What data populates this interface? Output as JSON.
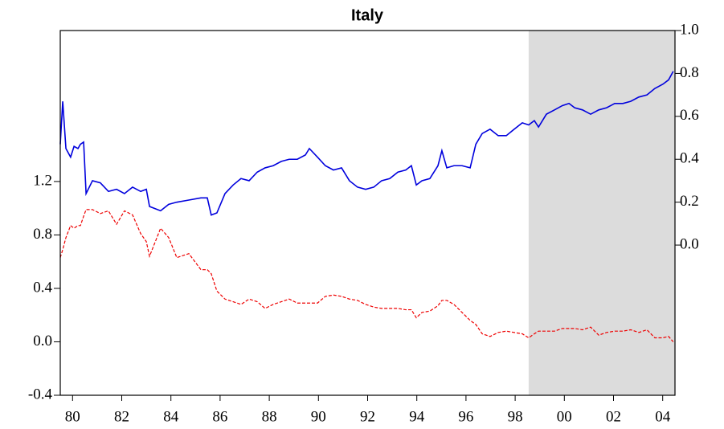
{
  "chart_data": {
    "type": "line",
    "title": "Italy",
    "x": [
      1979.5,
      1979.6,
      1979.73,
      1979.92,
      1980.06,
      1980.22,
      1980.32,
      1980.45,
      1980.55,
      1980.81,
      1981.13,
      1981.46,
      1981.79,
      1982.11,
      1982.44,
      1982.77,
      1983.0,
      1983.13,
      1983.58,
      1983.91,
      1984.24,
      1984.73,
      1985.22,
      1985.48,
      1985.64,
      1985.87,
      1986.2,
      1986.53,
      1986.85,
      1987.18,
      1987.51,
      1987.83,
      1988.16,
      1988.49,
      1988.81,
      1989.14,
      1989.47,
      1989.63,
      1989.96,
      1990.28,
      1990.61,
      1990.94,
      1991.26,
      1991.59,
      1991.92,
      1992.25,
      1992.57,
      1992.9,
      1993.23,
      1993.55,
      1993.78,
      1993.98,
      1994.21,
      1994.53,
      1994.86,
      1995.02,
      1995.22,
      1995.51,
      1995.84,
      1996.17,
      1996.4,
      1996.66,
      1996.98,
      1997.31,
      1997.64,
      1997.96,
      1998.29,
      1998.55,
      1998.78,
      1998.95,
      1999.27,
      1999.6,
      1999.92,
      2000.19,
      2000.42,
      2000.74,
      2001.07,
      2001.4,
      2001.72,
      2002.05,
      2002.38,
      2002.7,
      2003.03,
      2003.36,
      2003.68,
      2004.01,
      2004.24,
      2004.43
    ],
    "series": [
      {
        "color": "#0000dd",
        "axis": "y2",
        "dash": false,
        "values": [
          0.47,
          0.67,
          0.45,
          0.41,
          0.46,
          0.45,
          0.47,
          0.48,
          0.24,
          0.3,
          0.29,
          0.25,
          0.26,
          0.24,
          0.27,
          0.25,
          0.26,
          0.18,
          0.16,
          0.19,
          0.2,
          0.21,
          0.22,
          0.22,
          0.14,
          0.15,
          0.24,
          0.28,
          0.31,
          0.3,
          0.34,
          0.36,
          0.37,
          0.39,
          0.4,
          0.4,
          0.42,
          0.45,
          0.41,
          0.37,
          0.35,
          0.36,
          0.3,
          0.27,
          0.26,
          0.27,
          0.3,
          0.31,
          0.34,
          0.35,
          0.37,
          0.28,
          0.3,
          0.31,
          0.37,
          0.44,
          0.36,
          0.37,
          0.37,
          0.36,
          0.47,
          0.52,
          0.54,
          0.51,
          0.51,
          0.54,
          0.57,
          0.56,
          0.58,
          0.55,
          0.61,
          0.63,
          0.65,
          0.66,
          0.64,
          0.63,
          0.61,
          0.63,
          0.64,
          0.66,
          0.66,
          0.67,
          0.69,
          0.7,
          0.73,
          0.75,
          0.77,
          0.81
        ]
      },
      {
        "color": "#ee0000",
        "axis": "y",
        "dash": true,
        "values": [
          0.63,
          0.69,
          0.78,
          0.87,
          0.85,
          0.87,
          0.87,
          0.94,
          0.99,
          0.99,
          0.96,
          0.98,
          0.88,
          0.98,
          0.95,
          0.81,
          0.75,
          0.64,
          0.85,
          0.78,
          0.63,
          0.66,
          0.54,
          0.54,
          0.51,
          0.38,
          0.32,
          0.3,
          0.28,
          0.32,
          0.3,
          0.25,
          0.28,
          0.3,
          0.32,
          0.29,
          0.29,
          0.29,
          0.29,
          0.34,
          0.35,
          0.34,
          0.32,
          0.31,
          0.28,
          0.26,
          0.25,
          0.25,
          0.25,
          0.24,
          0.24,
          0.18,
          0.22,
          0.23,
          0.27,
          0.31,
          0.31,
          0.28,
          0.22,
          0.16,
          0.13,
          0.06,
          0.04,
          0.07,
          0.08,
          0.07,
          0.06,
          0.03,
          0.06,
          0.08,
          0.08,
          0.08,
          0.1,
          0.1,
          0.1,
          0.09,
          0.11,
          0.05,
          0.07,
          0.08,
          0.08,
          0.09,
          0.07,
          0.09,
          0.03,
          0.03,
          0.04,
          0.0
        ]
      }
    ],
    "xlim": [
      1979.5,
      2004.5
    ],
    "xticks": [
      {
        "value": 1980,
        "label": "80"
      },
      {
        "value": 1982,
        "label": "82"
      },
      {
        "value": 1984,
        "label": "84"
      },
      {
        "value": 1986,
        "label": "86"
      },
      {
        "value": 1988,
        "label": "88"
      },
      {
        "value": 1990,
        "label": "90"
      },
      {
        "value": 1992,
        "label": "92"
      },
      {
        "value": 1994,
        "label": "94"
      },
      {
        "value": 1996,
        "label": "96"
      },
      {
        "value": 1998,
        "label": "98"
      },
      {
        "value": 2000,
        "label": "00"
      },
      {
        "value": 2002,
        "label": "02"
      },
      {
        "value": 2004,
        "label": "04"
      }
    ],
    "ylim": [
      -0.4,
      2.33
    ],
    "yticks": [
      -0.4,
      {
        "value": 0,
        "label": "0.0"
      },
      0.4,
      0.8,
      1.2
    ],
    "y2lim": [
      -0.7,
      1.0
    ],
    "y2ticks": [
      {
        "value": 0,
        "label": "0.0"
      },
      0.2,
      0.4,
      0.6,
      0.8,
      {
        "value": 1,
        "label": "1.0"
      }
    ],
    "shade": [
      1998.55,
      2004.5
    ],
    "shade_color": "#dcdcdc"
  }
}
